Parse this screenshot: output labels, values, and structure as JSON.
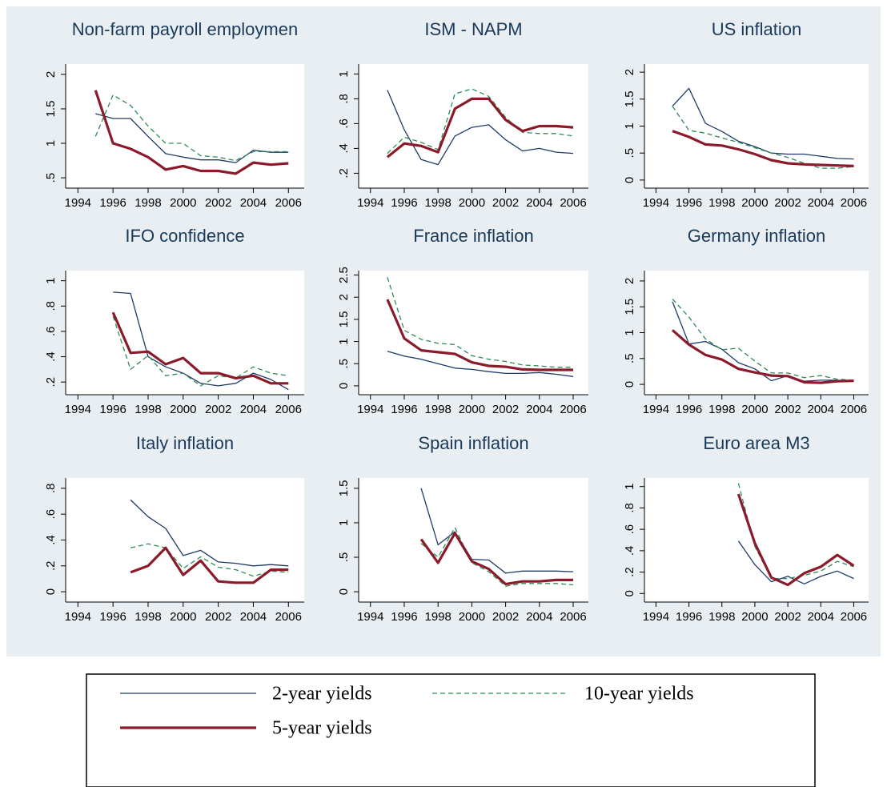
{
  "chart_data": [
    {
      "type": "line",
      "title": "Non-farm payroll employmen",
      "x": [
        1995,
        1996,
        1997,
        1998,
        1999,
        2000,
        2001,
        2002,
        2003,
        2004,
        2005,
        2006
      ],
      "xlim": [
        1993.3,
        2006.9
      ],
      "xticks": [
        1994,
        1996,
        1998,
        2000,
        2002,
        2004,
        2006
      ],
      "ylim": [
        0.35,
        2.15
      ],
      "yticks": [
        {
          "value": 0.5,
          "label": ".5"
        },
        1,
        1.5,
        2
      ],
      "series": [
        {
          "name": "2-year yields",
          "color": "#1f3a68",
          "values": [
            1.43,
            1.36,
            1.36,
            1.1,
            0.85,
            0.8,
            0.76,
            0.76,
            0.72,
            0.9,
            0.87,
            0.87
          ]
        },
        {
          "name": "10-year yields",
          "color": "#2e8b57",
          "values": [
            1.1,
            1.7,
            1.55,
            1.25,
            1.0,
            1.0,
            0.82,
            0.8,
            0.75,
            0.88,
            0.88,
            0.88
          ]
        },
        {
          "name": "5-year yields",
          "color": "#8b1a2b",
          "values": [
            1.77,
            1.0,
            0.92,
            0.8,
            0.62,
            0.67,
            0.6,
            0.6,
            0.56,
            0.72,
            0.69,
            0.71
          ]
        }
      ]
    },
    {
      "type": "line",
      "title": "ISM - NAPM",
      "x": [
        1995,
        1996,
        1997,
        1998,
        1999,
        2000,
        2001,
        2002,
        2003,
        2004,
        2005,
        2006
      ],
      "xlim": [
        1993.3,
        2006.9
      ],
      "xticks": [
        1994,
        1996,
        1998,
        2000,
        2002,
        2004,
        2006
      ],
      "ylim": [
        0.08,
        1.08
      ],
      "yticks": [
        {
          "value": 0.2,
          "label": ".2"
        },
        {
          "value": 0.4,
          "label": ".4"
        },
        {
          "value": 0.6,
          "label": ".6"
        },
        {
          "value": 0.8,
          "label": ".8"
        },
        1
      ],
      "series": [
        {
          "name": "2-year yields",
          "color": "#1f3a68",
          "values": [
            0.87,
            0.55,
            0.31,
            0.27,
            0.5,
            0.57,
            0.59,
            0.47,
            0.38,
            0.4,
            0.37,
            0.36
          ]
        },
        {
          "name": "10-year yields",
          "color": "#2e8b57",
          "values": [
            0.36,
            0.49,
            0.45,
            0.39,
            0.84,
            0.88,
            0.82,
            0.65,
            0.53,
            0.52,
            0.52,
            0.5
          ]
        },
        {
          "name": "5-year yields",
          "color": "#8b1a2b",
          "values": [
            0.33,
            0.44,
            0.42,
            0.37,
            0.72,
            0.8,
            0.8,
            0.63,
            0.54,
            0.58,
            0.58,
            0.57
          ]
        }
      ]
    },
    {
      "type": "line",
      "title": "US inflation",
      "x": [
        1995,
        1996,
        1997,
        1998,
        1999,
        2000,
        2001,
        2002,
        2003,
        2004,
        2005,
        2006
      ],
      "xlim": [
        1993.3,
        2006.9
      ],
      "xticks": [
        1994,
        1996,
        1998,
        2000,
        2002,
        2004,
        2006
      ],
      "ylim": [
        -0.15,
        2.15
      ],
      "yticks": [
        0,
        {
          "value": 0.5,
          "label": ".5"
        },
        1,
        1.5,
        2
      ],
      "series": [
        {
          "name": "2-year yields",
          "color": "#1f3a68",
          "values": [
            1.37,
            1.7,
            1.05,
            0.9,
            0.72,
            0.62,
            0.5,
            0.48,
            0.48,
            0.44,
            0.4,
            0.39
          ]
        },
        {
          "name": "10-year yields",
          "color": "#2e8b57",
          "values": [
            1.37,
            0.92,
            0.87,
            0.78,
            0.7,
            0.6,
            0.5,
            0.42,
            0.31,
            0.22,
            0.22,
            0.25
          ]
        },
        {
          "name": "5-year yields",
          "color": "#8b1a2b",
          "values": [
            0.91,
            0.8,
            0.66,
            0.64,
            0.57,
            0.48,
            0.37,
            0.31,
            0.29,
            0.28,
            0.27,
            0.26
          ]
        }
      ]
    },
    {
      "type": "line",
      "title": "IFO confidence",
      "x": [
        1995,
        1996,
        1997,
        1998,
        1999,
        2000,
        2001,
        2002,
        2003,
        2004,
        2005,
        2006
      ],
      "xlim": [
        1993.3,
        2006.9
      ],
      "xticks": [
        1994,
        1996,
        1998,
        2000,
        2002,
        2004,
        2006
      ],
      "ylim": [
        0.1,
        1.08
      ],
      "yticks": [
        {
          "value": 0.2,
          "label": ".2"
        },
        {
          "value": 0.4,
          "label": ".4"
        },
        {
          "value": 0.6,
          "label": ".6"
        },
        {
          "value": 0.8,
          "label": ".8"
        },
        1
      ],
      "series": [
        {
          "name": "2-year yields",
          "color": "#1f3a68",
          "values": [
            null,
            0.91,
            0.9,
            0.4,
            0.32,
            0.27,
            0.19,
            0.17,
            0.19,
            0.27,
            0.22,
            0.14
          ]
        },
        {
          "name": "10-year yields",
          "color": "#2e8b57",
          "values": [
            null,
            0.72,
            0.3,
            0.41,
            0.25,
            0.27,
            0.17,
            0.25,
            0.23,
            0.32,
            0.27,
            0.25
          ]
        },
        {
          "name": "5-year yields",
          "color": "#8b1a2b",
          "values": [
            null,
            0.75,
            0.43,
            0.44,
            0.34,
            0.39,
            0.27,
            0.27,
            0.23,
            0.25,
            0.19,
            0.19
          ]
        }
      ]
    },
    {
      "type": "line",
      "title": "France inflation",
      "x": [
        1995,
        1996,
        1997,
        1998,
        1999,
        2000,
        2001,
        2002,
        2003,
        2004,
        2005,
        2006
      ],
      "xlim": [
        1993.3,
        2006.9
      ],
      "xticks": [
        1994,
        1996,
        1998,
        2000,
        2002,
        2004,
        2006
      ],
      "ylim": [
        -0.2,
        2.6
      ],
      "yticks": [
        0,
        {
          "value": 0.5,
          "label": ".5"
        },
        1,
        1.5,
        2,
        2.5
      ],
      "series": [
        {
          "name": "2-year yields",
          "color": "#1f3a68",
          "values": [
            0.78,
            0.67,
            0.6,
            0.5,
            0.4,
            0.37,
            0.32,
            0.28,
            0.28,
            0.3,
            0.26,
            0.21
          ]
        },
        {
          "name": "10-year yields",
          "color": "#2e8b57",
          "values": [
            2.45,
            1.25,
            1.05,
            0.96,
            0.93,
            0.68,
            0.6,
            0.55,
            0.47,
            0.45,
            0.42,
            0.42
          ]
        },
        {
          "name": "5-year yields",
          "color": "#8b1a2b",
          "values": [
            1.95,
            1.07,
            0.8,
            0.76,
            0.72,
            0.53,
            0.45,
            0.43,
            0.37,
            0.36,
            0.36,
            0.36
          ]
        }
      ]
    },
    {
      "type": "line",
      "title": "Germany inflation",
      "x": [
        1995,
        1996,
        1997,
        1998,
        1999,
        2000,
        2001,
        2002,
        2003,
        2004,
        2005,
        2006
      ],
      "xlim": [
        1993.3,
        2006.9
      ],
      "xticks": [
        1994,
        1996,
        1998,
        2000,
        2002,
        2004,
        2006
      ],
      "ylim": [
        -0.2,
        2.2
      ],
      "yticks": [
        0,
        {
          "value": 0.5,
          "label": ".5"
        },
        1,
        1.5,
        2
      ],
      "series": [
        {
          "name": "2-year yields",
          "color": "#1f3a68",
          "values": [
            1.6,
            0.78,
            0.83,
            0.68,
            0.42,
            0.3,
            0.07,
            0.17,
            0.06,
            0.08,
            0.08,
            0.06
          ]
        },
        {
          "name": "10-year yields",
          "color": "#2e8b57",
          "values": [
            1.65,
            1.3,
            0.88,
            0.67,
            0.7,
            0.45,
            0.22,
            0.22,
            0.13,
            0.17,
            0.1,
            0.08
          ]
        },
        {
          "name": "5-year yields",
          "color": "#8b1a2b",
          "values": [
            1.05,
            0.77,
            0.57,
            0.48,
            0.3,
            0.23,
            0.17,
            0.16,
            0.04,
            0.03,
            0.06,
            0.07
          ]
        }
      ]
    },
    {
      "type": "line",
      "title": "Italy inflation",
      "x": [
        1995,
        1996,
        1997,
        1998,
        1999,
        2000,
        2001,
        2002,
        2003,
        2004,
        2005,
        2006
      ],
      "xlim": [
        1993.3,
        2006.9
      ],
      "xticks": [
        1994,
        1996,
        1998,
        2000,
        2002,
        2004,
        2006
      ],
      "ylim": [
        -0.08,
        0.88
      ],
      "yticks": [
        0,
        {
          "value": 0.2,
          "label": ".2"
        },
        {
          "value": 0.4,
          "label": ".4"
        },
        {
          "value": 0.6,
          "label": ".6"
        },
        {
          "value": 0.8,
          "label": ".8"
        }
      ],
      "series": [
        {
          "name": "2-year yields",
          "color": "#1f3a68",
          "values": [
            null,
            null,
            0.71,
            0.58,
            0.49,
            0.28,
            0.32,
            0.23,
            0.22,
            0.2,
            0.21,
            0.2
          ]
        },
        {
          "name": "10-year yields",
          "color": "#2e8b57",
          "values": [
            null,
            null,
            0.34,
            0.37,
            0.34,
            0.18,
            0.27,
            0.19,
            0.17,
            0.12,
            0.16,
            0.15
          ]
        },
        {
          "name": "5-year yields",
          "color": "#8b1a2b",
          "values": [
            null,
            null,
            0.15,
            0.2,
            0.34,
            0.13,
            0.24,
            0.08,
            0.07,
            0.07,
            0.17,
            0.17
          ]
        }
      ]
    },
    {
      "type": "line",
      "title": "Spain inflation",
      "x": [
        1995,
        1996,
        1997,
        1998,
        1999,
        2000,
        2001,
        2002,
        2003,
        2004,
        2005,
        2006
      ],
      "xlim": [
        1993.3,
        2006.9
      ],
      "xticks": [
        1994,
        1996,
        1998,
        2000,
        2002,
        2004,
        2006
      ],
      "ylim": [
        -0.15,
        1.65
      ],
      "yticks": [
        0,
        {
          "value": 0.5,
          "label": ".5"
        },
        1,
        1.5
      ],
      "series": [
        {
          "name": "2-year yields",
          "color": "#1f3a68",
          "values": [
            null,
            null,
            1.5,
            0.68,
            0.87,
            0.47,
            0.46,
            0.27,
            0.3,
            0.3,
            0.3,
            0.29
          ]
        },
        {
          "name": "10-year yields",
          "color": "#2e8b57",
          "values": [
            null,
            null,
            0.7,
            0.5,
            0.93,
            0.42,
            0.29,
            0.08,
            0.12,
            0.12,
            0.12,
            0.1
          ]
        },
        {
          "name": "5-year yields",
          "color": "#8b1a2b",
          "values": [
            null,
            null,
            0.76,
            0.42,
            0.85,
            0.44,
            0.33,
            0.11,
            0.15,
            0.15,
            0.17,
            0.17
          ]
        }
      ]
    },
    {
      "type": "line",
      "title": "Euro area M3",
      "x": [
        1995,
        1996,
        1997,
        1998,
        1999,
        2000,
        2001,
        2002,
        2003,
        2004,
        2005,
        2006
      ],
      "xlim": [
        1993.3,
        2006.9
      ],
      "xticks": [
        1994,
        1996,
        1998,
        2000,
        2002,
        2004,
        2006
      ],
      "ylim": [
        -0.08,
        1.08
      ],
      "yticks": [
        0,
        {
          "value": 0.2,
          "label": ".2"
        },
        {
          "value": 0.4,
          "label": ".4"
        },
        {
          "value": 0.6,
          "label": ".6"
        },
        {
          "value": 0.8,
          "label": ".8"
        },
        1
      ],
      "series": [
        {
          "name": "2-year yields",
          "color": "#1f3a68",
          "values": [
            null,
            null,
            null,
            null,
            0.49,
            0.27,
            0.11,
            0.16,
            0.09,
            0.16,
            0.21,
            0.14
          ]
        },
        {
          "name": "10-year yields",
          "color": "#2e8b57",
          "values": [
            null,
            null,
            null,
            null,
            1.03,
            0.44,
            0.14,
            0.14,
            0.17,
            0.21,
            0.3,
            0.25
          ]
        },
        {
          "name": "5-year yields",
          "color": "#8b1a2b",
          "values": [
            null,
            null,
            null,
            null,
            0.93,
            0.47,
            0.15,
            0.08,
            0.19,
            0.25,
            0.36,
            0.26
          ]
        }
      ]
    }
  ]
}
